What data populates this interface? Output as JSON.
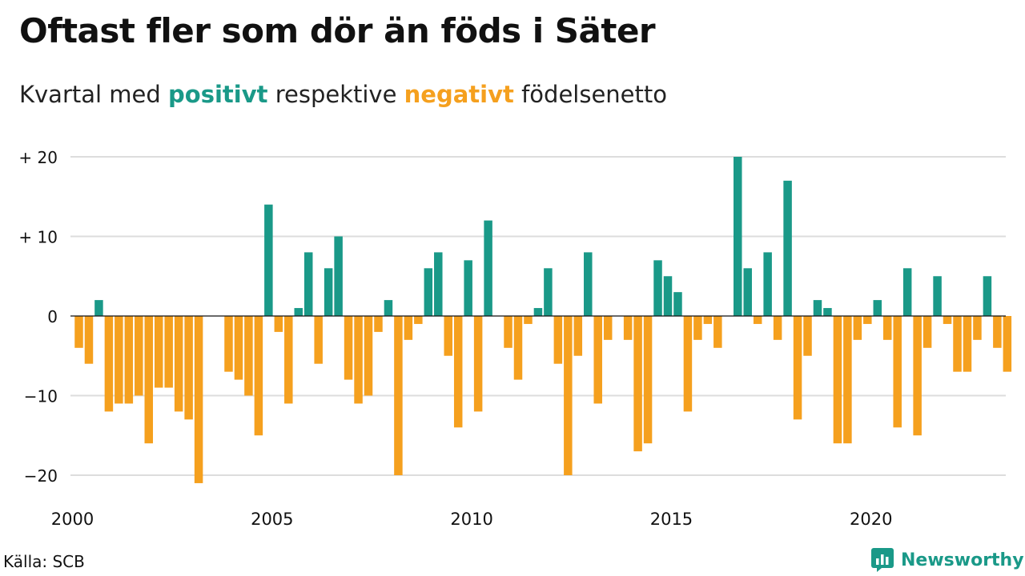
{
  "title": "Oftast fler som dör än föds i Säter",
  "subtitle": {
    "prefix": "Kvartal med ",
    "positive": "positivt",
    "middle": " respektive ",
    "negative": "negativt",
    "suffix": " födelsenetto"
  },
  "source": "Källa: SCB",
  "brand": "Newsworthy",
  "colors": {
    "positive": "#1a9988",
    "negative": "#f5a01e",
    "grid": "#dddddd",
    "text": "#111111"
  },
  "chart_data": {
    "type": "bar",
    "x_start": "2000 Q1",
    "x_end": "2023 Q2",
    "values": [
      -4,
      -6,
      2,
      -12,
      -11,
      -11,
      -10,
      -16,
      -9,
      -9,
      -12,
      -13,
      -21,
      0,
      0,
      -7,
      -8,
      -10,
      -15,
      14,
      -2,
      -11,
      1,
      8,
      -6,
      6,
      10,
      -8,
      -11,
      -10,
      -2,
      2,
      -20,
      -3,
      -1,
      6,
      8,
      -5,
      -14,
      7,
      -12,
      12,
      0,
      -4,
      -8,
      -1,
      1,
      6,
      -6,
      -20,
      -5,
      8,
      -11,
      -3,
      0,
      -3,
      -17,
      -16,
      7,
      5,
      3,
      -12,
      -3,
      -1,
      -4,
      0,
      20,
      6,
      -1,
      8,
      -3,
      17,
      -13,
      -5,
      2,
      1,
      -16,
      -16,
      -3,
      -1,
      2,
      -3,
      -14,
      6,
      -15,
      -4,
      5,
      -1,
      -7,
      -7,
      -3,
      5,
      -4,
      -7
    ],
    "ylim": [
      -23,
      22
    ],
    "yticks": [
      20,
      10,
      0,
      -10,
      -20
    ],
    "ytick_labels": [
      "+ 20",
      "+ 10",
      "0",
      "−10",
      "−20"
    ],
    "xticks": [
      2000,
      2005,
      2010,
      2015,
      2020
    ],
    "xtick_labels": [
      "2000",
      "2005",
      "2010",
      "2015",
      "2020"
    ],
    "grid": true,
    "xlabel": "",
    "ylabel": ""
  }
}
